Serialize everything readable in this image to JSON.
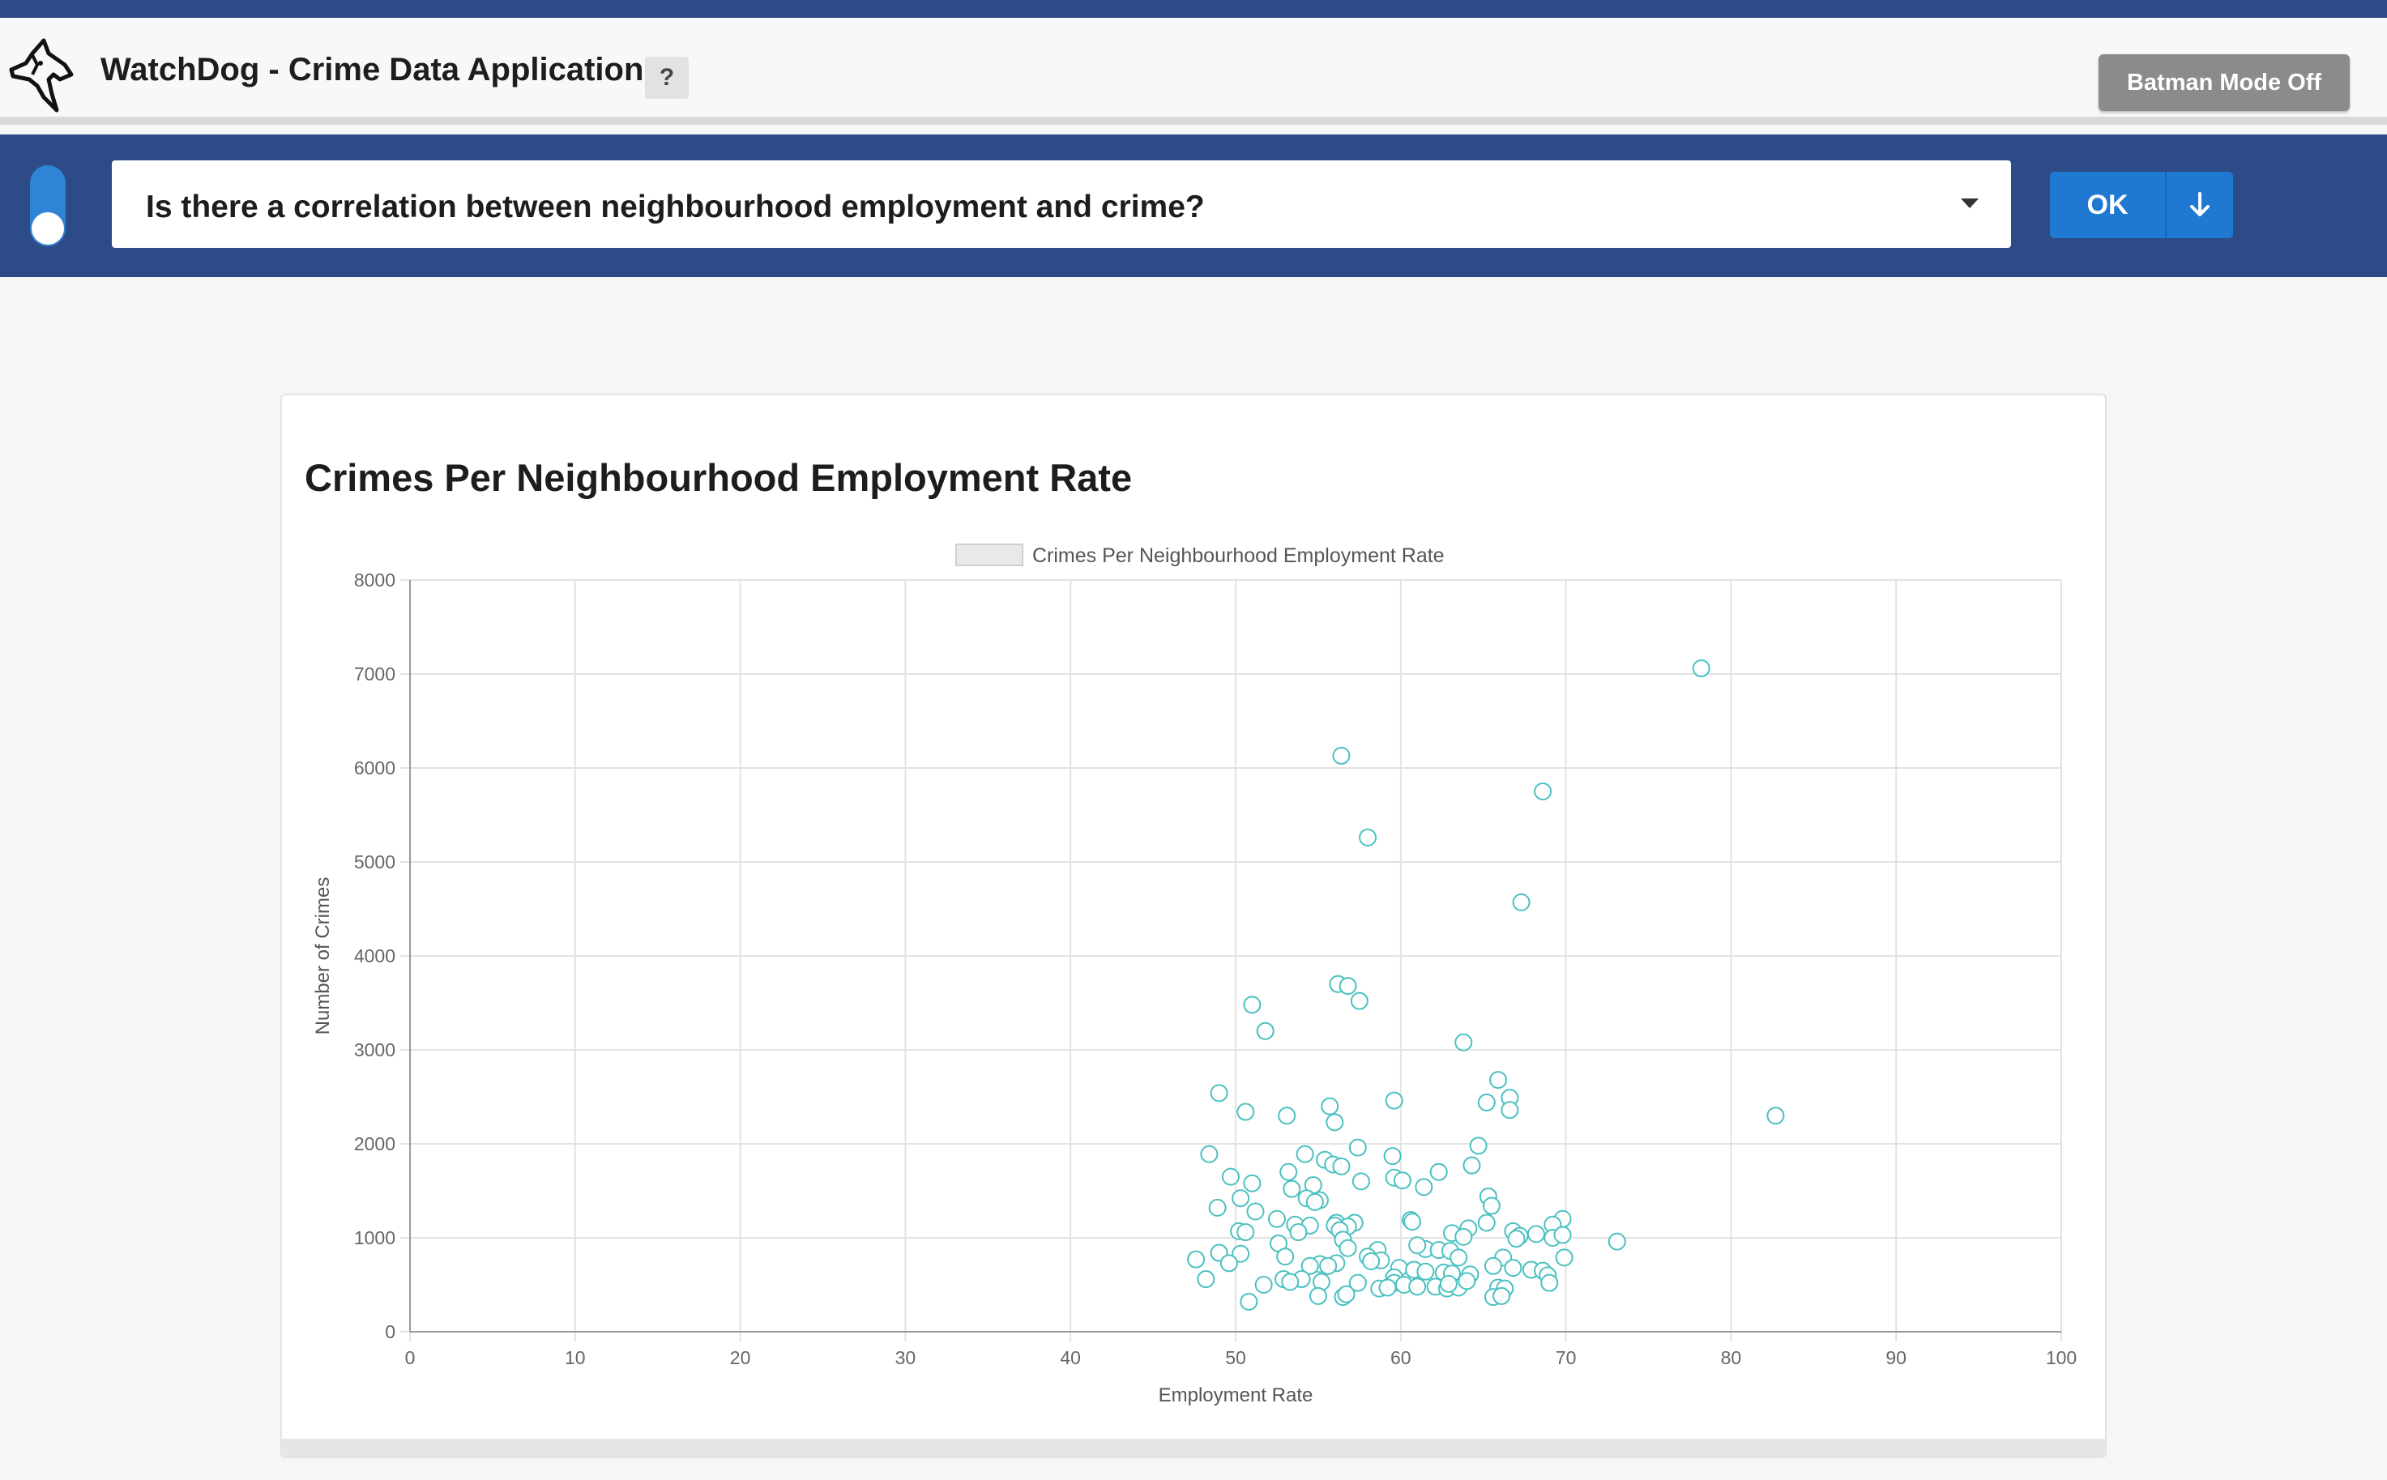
{
  "header": {
    "app_title": "WatchDog - Crime Data Application",
    "help_label": "?",
    "batman_label": "Batman Mode Off",
    "logo_icon": "dog-head-logo-icon"
  },
  "query": {
    "question": "Is there a correlation between neighbourhood employment and crime?",
    "ok_label": "OK",
    "download_icon": "arrow-down-icon",
    "toggle_icon": "toggle-switch-icon"
  },
  "colors": {
    "nav": "#2c4b87",
    "accent": "#1f78d1",
    "point": "#4bc0c0",
    "batman_button": "#8b8b8b"
  },
  "chart_data": {
    "type": "scatter",
    "title": "Crimes Per Neighbourhood Employment Rate",
    "legend": "Crimes Per Neighbourhood Employment Rate",
    "legend_position": "top",
    "xlabel": "Employment Rate",
    "ylabel": "Number of Crimes",
    "xlim": [
      0,
      100
    ],
    "ylim": [
      0,
      8000
    ],
    "x_ticks": [
      "0",
      "10",
      "20",
      "30",
      "40",
      "50",
      "60",
      "70",
      "80",
      "90",
      "100"
    ],
    "y_ticks": [
      "0",
      "1000",
      "2000",
      "3000",
      "4000",
      "5000",
      "6000",
      "7000",
      "8000"
    ],
    "grid": true,
    "points": [
      {
        "x": 78.2,
        "y": 7060
      },
      {
        "x": 56.4,
        "y": 6130
      },
      {
        "x": 68.6,
        "y": 5750
      },
      {
        "x": 58.0,
        "y": 5260
      },
      {
        "x": 67.3,
        "y": 4570
      },
      {
        "x": 56.2,
        "y": 3700
      },
      {
        "x": 56.8,
        "y": 3680
      },
      {
        "x": 57.5,
        "y": 3520
      },
      {
        "x": 51.0,
        "y": 3480
      },
      {
        "x": 51.8,
        "y": 3200
      },
      {
        "x": 63.8,
        "y": 3080
      },
      {
        "x": 65.9,
        "y": 2680
      },
      {
        "x": 49.0,
        "y": 2540
      },
      {
        "x": 66.6,
        "y": 2490
      },
      {
        "x": 59.6,
        "y": 2460
      },
      {
        "x": 65.2,
        "y": 2440
      },
      {
        "x": 55.7,
        "y": 2400
      },
      {
        "x": 66.6,
        "y": 2360
      },
      {
        "x": 50.6,
        "y": 2340
      },
      {
        "x": 82.7,
        "y": 2300
      },
      {
        "x": 53.1,
        "y": 2300
      },
      {
        "x": 56.0,
        "y": 2230
      },
      {
        "x": 64.7,
        "y": 1980
      },
      {
        "x": 57.4,
        "y": 1960
      },
      {
        "x": 48.4,
        "y": 1890
      },
      {
        "x": 54.2,
        "y": 1890
      },
      {
        "x": 59.5,
        "y": 1870
      },
      {
        "x": 55.4,
        "y": 1830
      },
      {
        "x": 55.9,
        "y": 1780
      },
      {
        "x": 64.3,
        "y": 1770
      },
      {
        "x": 56.4,
        "y": 1760
      },
      {
        "x": 53.2,
        "y": 1700
      },
      {
        "x": 62.3,
        "y": 1700
      },
      {
        "x": 49.7,
        "y": 1650
      },
      {
        "x": 59.6,
        "y": 1640
      },
      {
        "x": 60.1,
        "y": 1610
      },
      {
        "x": 57.6,
        "y": 1600
      },
      {
        "x": 51.0,
        "y": 1580
      },
      {
        "x": 54.7,
        "y": 1560
      },
      {
        "x": 61.4,
        "y": 1540
      },
      {
        "x": 53.4,
        "y": 1520
      },
      {
        "x": 65.3,
        "y": 1440
      },
      {
        "x": 50.3,
        "y": 1420
      },
      {
        "x": 54.3,
        "y": 1420
      },
      {
        "x": 55.1,
        "y": 1400
      },
      {
        "x": 54.8,
        "y": 1380
      },
      {
        "x": 65.5,
        "y": 1340
      },
      {
        "x": 48.9,
        "y": 1320
      },
      {
        "x": 51.2,
        "y": 1280
      },
      {
        "x": 52.5,
        "y": 1200
      },
      {
        "x": 56.1,
        "y": 1160
      },
      {
        "x": 57.2,
        "y": 1160
      },
      {
        "x": 69.8,
        "y": 1200
      },
      {
        "x": 60.6,
        "y": 1190
      },
      {
        "x": 60.7,
        "y": 1170
      },
      {
        "x": 65.2,
        "y": 1160
      },
      {
        "x": 53.6,
        "y": 1140
      },
      {
        "x": 54.5,
        "y": 1130
      },
      {
        "x": 56.0,
        "y": 1130
      },
      {
        "x": 56.8,
        "y": 1120
      },
      {
        "x": 64.1,
        "y": 1100
      },
      {
        "x": 69.2,
        "y": 1140
      },
      {
        "x": 68.2,
        "y": 1040
      },
      {
        "x": 56.3,
        "y": 1080
      },
      {
        "x": 50.2,
        "y": 1070
      },
      {
        "x": 50.6,
        "y": 1060
      },
      {
        "x": 53.8,
        "y": 1060
      },
      {
        "x": 63.1,
        "y": 1050
      },
      {
        "x": 63.8,
        "y": 1010
      },
      {
        "x": 66.8,
        "y": 1070
      },
      {
        "x": 67.2,
        "y": 1020
      },
      {
        "x": 67.0,
        "y": 990
      },
      {
        "x": 69.2,
        "y": 1000
      },
      {
        "x": 69.8,
        "y": 1030
      },
      {
        "x": 73.1,
        "y": 960
      },
      {
        "x": 52.6,
        "y": 940
      },
      {
        "x": 56.5,
        "y": 980
      },
      {
        "x": 56.8,
        "y": 890
      },
      {
        "x": 58.6,
        "y": 870
      },
      {
        "x": 61.5,
        "y": 880
      },
      {
        "x": 62.3,
        "y": 870
      },
      {
        "x": 63.0,
        "y": 860
      },
      {
        "x": 61.0,
        "y": 920
      },
      {
        "x": 49.0,
        "y": 840
      },
      {
        "x": 50.3,
        "y": 830
      },
      {
        "x": 53.0,
        "y": 800
      },
      {
        "x": 58.0,
        "y": 800
      },
      {
        "x": 58.8,
        "y": 760
      },
      {
        "x": 58.2,
        "y": 750
      },
      {
        "x": 63.5,
        "y": 790
      },
      {
        "x": 66.2,
        "y": 790
      },
      {
        "x": 69.9,
        "y": 790
      },
      {
        "x": 47.6,
        "y": 770
      },
      {
        "x": 49.6,
        "y": 730
      },
      {
        "x": 56.1,
        "y": 730
      },
      {
        "x": 55.1,
        "y": 720
      },
      {
        "x": 54.5,
        "y": 700
      },
      {
        "x": 55.6,
        "y": 700
      },
      {
        "x": 59.9,
        "y": 680
      },
      {
        "x": 60.8,
        "y": 660
      },
      {
        "x": 61.5,
        "y": 640
      },
      {
        "x": 62.6,
        "y": 630
      },
      {
        "x": 63.1,
        "y": 620
      },
      {
        "x": 64.2,
        "y": 610
      },
      {
        "x": 65.6,
        "y": 700
      },
      {
        "x": 66.8,
        "y": 680
      },
      {
        "x": 67.9,
        "y": 660
      },
      {
        "x": 68.6,
        "y": 650
      },
      {
        "x": 68.9,
        "y": 600
      },
      {
        "x": 59.6,
        "y": 580
      },
      {
        "x": 54.0,
        "y": 560
      },
      {
        "x": 52.9,
        "y": 560
      },
      {
        "x": 53.3,
        "y": 530
      },
      {
        "x": 55.2,
        "y": 530
      },
      {
        "x": 57.4,
        "y": 520
      },
      {
        "x": 59.6,
        "y": 520
      },
      {
        "x": 60.2,
        "y": 500
      },
      {
        "x": 61.0,
        "y": 480
      },
      {
        "x": 62.1,
        "y": 480
      },
      {
        "x": 62.8,
        "y": 460
      },
      {
        "x": 63.5,
        "y": 470
      },
      {
        "x": 48.2,
        "y": 560
      },
      {
        "x": 51.7,
        "y": 500
      },
      {
        "x": 58.7,
        "y": 460
      },
      {
        "x": 59.2,
        "y": 470
      },
      {
        "x": 65.9,
        "y": 470
      },
      {
        "x": 66.3,
        "y": 460
      },
      {
        "x": 69.0,
        "y": 520
      },
      {
        "x": 55.0,
        "y": 380
      },
      {
        "x": 56.5,
        "y": 370
      },
      {
        "x": 65.6,
        "y": 370
      },
      {
        "x": 66.1,
        "y": 380
      },
      {
        "x": 50.8,
        "y": 320
      },
      {
        "x": 56.7,
        "y": 400
      },
      {
        "x": 62.9,
        "y": 510
      },
      {
        "x": 64.0,
        "y": 540
      }
    ]
  }
}
